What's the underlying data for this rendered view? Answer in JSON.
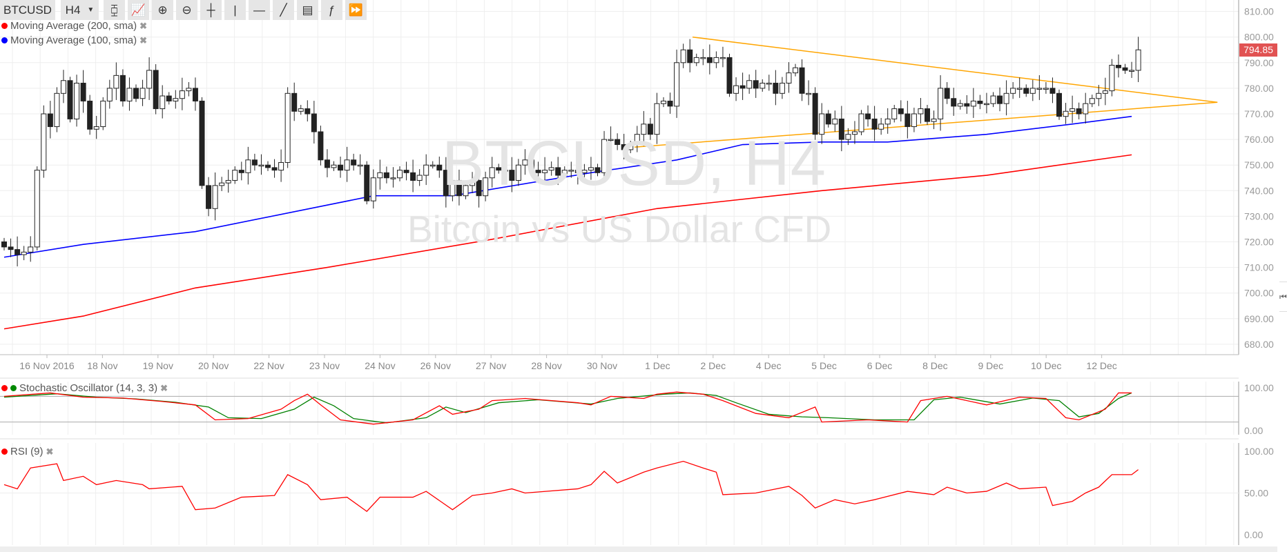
{
  "toolbar": {
    "symbol": "BTCUSD",
    "timeframe": "H4",
    "icons": [
      "bar-chart-icon",
      "line-chart-icon",
      "zoom-in-icon",
      "zoom-out-icon",
      "crosshair-icon",
      "vertical-line-icon",
      "horizontal-line-icon",
      "trend-line-icon",
      "fibonacci-icon",
      "function-icon",
      "fast-forward-icon"
    ],
    "glyphs": [
      "⧮",
      "📈",
      "⊕",
      "⊖",
      "┼",
      "|",
      "—",
      "╱",
      "▤",
      "ƒ",
      "⏩"
    ]
  },
  "legend": {
    "ma200": {
      "label": "Moving Average (200, sma)",
      "color": "#ff0000"
    },
    "ma100": {
      "label": "Moving Average (100, sma)",
      "color": "#0000ff"
    },
    "stoch": {
      "label": "Stochastic Oscillator (14, 3, 3)"
    },
    "rsi": {
      "label": "RSI (9)"
    },
    "close_glyph": "✖"
  },
  "watermark": {
    "title": "BTCUSD, H4",
    "subtitle": "Bitcoin vs US Dollar CFD"
  },
  "last_price": "794.85",
  "side_button": "⏮",
  "chart_data": {
    "type": "candlestick",
    "title": "BTCUSD, H4",
    "price_axis": {
      "ticks": [
        "810.00",
        "800.00",
        "790.00",
        "780.00",
        "770.00",
        "760.00",
        "750.00",
        "740.00",
        "730.00",
        "720.00",
        "710.00",
        "700.00",
        "690.00",
        "680.00"
      ],
      "range": [
        680,
        810
      ]
    },
    "date_labels": [
      "16 Nov 2016",
      "18 Nov",
      "19 Nov",
      "20 Nov",
      "22 Nov",
      "23 Nov",
      "24 Nov",
      "26 Nov",
      "27 Nov",
      "28 Nov",
      "30 Nov",
      "1 Dec",
      "2 Dec",
      "4 Dec",
      "5 Dec",
      "6 Dec",
      "8 Dec",
      "9 Dec",
      "10 Dec",
      "12 Dec"
    ],
    "start_open": 720,
    "closes": [
      718,
      717,
      715,
      716,
      718,
      748,
      770,
      765,
      778,
      783,
      768,
      782,
      775,
      764,
      765,
      775,
      780,
      785,
      775,
      780,
      776,
      780,
      787,
      772,
      777,
      775,
      776,
      779,
      780,
      775,
      742,
      733,
      742,
      743,
      744,
      748,
      747,
      752,
      750,
      750,
      749,
      748,
      751,
      778,
      771,
      772,
      770,
      763,
      752,
      749,
      750,
      748,
      752,
      750,
      750,
      736,
      745,
      747,
      745,
      745,
      748,
      747,
      744,
      746,
      750,
      750,
      748,
      738,
      744,
      738,
      742,
      744,
      738,
      745,
      749,
      748,
      748,
      744,
      750,
      752,
      748,
      747,
      748,
      749,
      746,
      748,
      748,
      747,
      748,
      749,
      747,
      760,
      760,
      758,
      756,
      758,
      762,
      766,
      762,
      774,
      775,
      773,
      790,
      795,
      790,
      792,
      792,
      790,
      792,
      792,
      778,
      781,
      780,
      783,
      780,
      782,
      782,
      778,
      782,
      786,
      788,
      778,
      778,
      762,
      770,
      766,
      768,
      760,
      762,
      763,
      770,
      768,
      764,
      766,
      768,
      772,
      770,
      765,
      770,
      772,
      767,
      768,
      780,
      776,
      773,
      774,
      773,
      775,
      774,
      774,
      777,
      774,
      778,
      780,
      780,
      778,
      780,
      780,
      780,
      778,
      769,
      771,
      772,
      770,
      774,
      776,
      778,
      779,
      789,
      788,
      787,
      787,
      795
    ],
    "ma100": [
      [
        0,
        714
      ],
      [
        12,
        719
      ],
      [
        29,
        724
      ],
      [
        56,
        738
      ],
      [
        68,
        738
      ],
      [
        89,
        747
      ],
      [
        102,
        752
      ],
      [
        112,
        758
      ],
      [
        124,
        759
      ],
      [
        134,
        759
      ],
      [
        149,
        762
      ],
      [
        162,
        766
      ],
      [
        171,
        769
      ]
    ],
    "ma200": [
      [
        0,
        686
      ],
      [
        12,
        691
      ],
      [
        29,
        702
      ],
      [
        49,
        710
      ],
      [
        74,
        721
      ],
      [
        99,
        733
      ],
      [
        124,
        740
      ],
      [
        149,
        746
      ],
      [
        171,
        754
      ]
    ],
    "trendlines": [
      {
        "name": "resistance",
        "color": "#ffa500",
        "points": [
          [
            104.4,
            800
          ],
          [
            184,
            774.5
          ]
        ]
      },
      {
        "name": "support",
        "color": "#ffa500",
        "points": [
          [
            95.6,
            757
          ],
          [
            184,
            774.5
          ]
        ]
      }
    ],
    "stochastic": {
      "axis_ticks": [
        "100.00",
        "0.00"
      ],
      "levels": [
        80,
        20
      ],
      "k_color": "#ff0000",
      "d_color": "#008000",
      "k": [
        [
          0,
          80
        ],
        [
          7,
          88
        ],
        [
          12,
          78
        ],
        [
          18,
          76
        ],
        [
          24,
          68
        ],
        [
          29,
          60
        ],
        [
          32,
          25
        ],
        [
          37,
          28
        ],
        [
          42,
          50
        ],
        [
          44,
          70
        ],
        [
          46,
          85
        ],
        [
          48,
          60
        ],
        [
          51,
          25
        ],
        [
          56,
          15
        ],
        [
          62,
          25
        ],
        [
          66,
          58
        ],
        [
          68,
          38
        ],
        [
          72,
          50
        ],
        [
          74,
          70
        ],
        [
          79,
          75
        ],
        [
          87,
          65
        ],
        [
          89,
          60
        ],
        [
          92,
          80
        ],
        [
          97,
          75
        ],
        [
          99,
          85
        ],
        [
          102,
          90
        ],
        [
          106,
          85
        ],
        [
          109,
          70
        ],
        [
          114,
          40
        ],
        [
          119,
          30
        ],
        [
          123,
          55
        ],
        [
          124,
          20
        ],
        [
          131,
          25
        ],
        [
          137,
          20
        ],
        [
          139,
          70
        ],
        [
          143,
          80
        ],
        [
          149,
          60
        ],
        [
          154,
          78
        ],
        [
          158,
          75
        ],
        [
          161,
          30
        ],
        [
          163,
          25
        ],
        [
          167,
          50
        ],
        [
          169,
          88
        ],
        [
          171,
          88
        ]
      ],
      "d": [
        [
          0,
          78
        ],
        [
          8,
          86
        ],
        [
          14,
          78
        ],
        [
          20,
          74
        ],
        [
          26,
          66
        ],
        [
          31,
          55
        ],
        [
          34,
          30
        ],
        [
          39,
          28
        ],
        [
          44,
          50
        ],
        [
          47,
          78
        ],
        [
          50,
          58
        ],
        [
          53,
          28
        ],
        [
          58,
          18
        ],
        [
          64,
          30
        ],
        [
          67,
          55
        ],
        [
          70,
          42
        ],
        [
          75,
          65
        ],
        [
          81,
          72
        ],
        [
          89,
          62
        ],
        [
          93,
          75
        ],
        [
          100,
          85
        ],
        [
          104,
          88
        ],
        [
          108,
          82
        ],
        [
          111,
          65
        ],
        [
          116,
          38
        ],
        [
          121,
          32
        ],
        [
          125,
          30
        ],
        [
          132,
          25
        ],
        [
          138,
          25
        ],
        [
          141,
          72
        ],
        [
          145,
          78
        ],
        [
          151,
          62
        ],
        [
          156,
          76
        ],
        [
          160,
          70
        ],
        [
          163,
          32
        ],
        [
          166,
          40
        ],
        [
          169,
          75
        ],
        [
          171,
          88
        ]
      ]
    },
    "rsi": {
      "axis_ticks": [
        "100.00",
        "50.00",
        "0.00"
      ],
      "color": "#ff0000",
      "values": [
        [
          0,
          60
        ],
        [
          2,
          55
        ],
        [
          4,
          80
        ],
        [
          8,
          85
        ],
        [
          9,
          65
        ],
        [
          12,
          70
        ],
        [
          14,
          60
        ],
        [
          17,
          65
        ],
        [
          21,
          60
        ],
        [
          22,
          55
        ],
        [
          27,
          58
        ],
        [
          29,
          30
        ],
        [
          32,
          32
        ],
        [
          36,
          45
        ],
        [
          41,
          47
        ],
        [
          43,
          72
        ],
        [
          46,
          60
        ],
        [
          48,
          42
        ],
        [
          52,
          45
        ],
        [
          55,
          28
        ],
        [
          57,
          45
        ],
        [
          62,
          45
        ],
        [
          64,
          52
        ],
        [
          68,
          30
        ],
        [
          71,
          47
        ],
        [
          74,
          50
        ],
        [
          77,
          55
        ],
        [
          79,
          50
        ],
        [
          87,
          55
        ],
        [
          89,
          60
        ],
        [
          91,
          76
        ],
        [
          93,
          62
        ],
        [
          97,
          75
        ],
        [
          99,
          80
        ],
        [
          103,
          88
        ],
        [
          106,
          80
        ],
        [
          108,
          75
        ],
        [
          109,
          48
        ],
        [
          114,
          50
        ],
        [
          119,
          58
        ],
        [
          121,
          47
        ],
        [
          123,
          32
        ],
        [
          126,
          42
        ],
        [
          129,
          37
        ],
        [
          132,
          42
        ],
        [
          137,
          52
        ],
        [
          141,
          48
        ],
        [
          143,
          57
        ],
        [
          146,
          50
        ],
        [
          149,
          52
        ],
        [
          152,
          62
        ],
        [
          154,
          55
        ],
        [
          158,
          57
        ],
        [
          159,
          35
        ],
        [
          162,
          40
        ],
        [
          164,
          50
        ],
        [
          166,
          57
        ],
        [
          168,
          72
        ],
        [
          171,
          72
        ],
        [
          172,
          78
        ]
      ]
    }
  }
}
